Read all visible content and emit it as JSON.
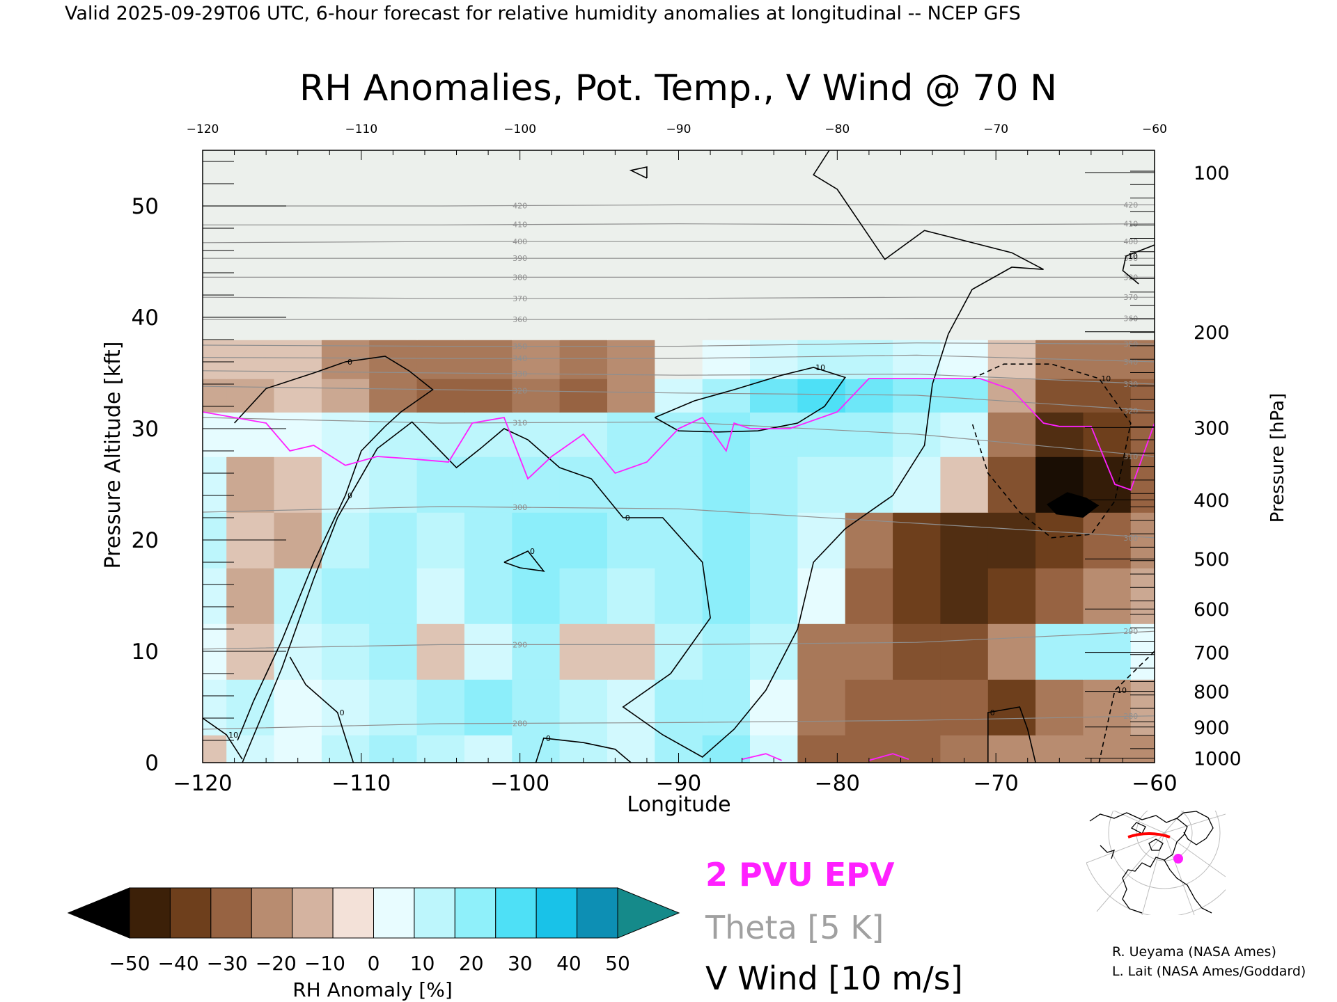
{
  "header": {
    "valid_line": "Valid 2025-09-29T06 UTC, 6-hour forecast for relative humidity anomalies at longitudinal -- NCEP GFS"
  },
  "chart_data": {
    "type": "heatmap",
    "title": "RH Anomalies, Pot. Temp., V Wind @ 70 N",
    "xlabel": "Longitude",
    "ylabel_left": "Pressure Altitude [kft]",
    "ylabel_right": "Pressure [hPa]",
    "xlim": [
      -120,
      -60
    ],
    "ylim": [
      0,
      55
    ],
    "x_ticks": [
      -120,
      -110,
      -100,
      -90,
      -80,
      -70,
      -60
    ],
    "x_tick_labels": [
      "−120",
      "−110",
      "−100",
      "−90",
      "−80",
      "−70",
      "−60"
    ],
    "y_ticks": [
      0,
      10,
      20,
      30,
      40,
      50
    ],
    "pressure_ticks": [
      {
        "hPa": "100",
        "kft": 53.0
      },
      {
        "hPa": "200",
        "kft": 38.7
      },
      {
        "hPa": "300",
        "kft": 30.1
      },
      {
        "hPa": "400",
        "kft": 23.6
      },
      {
        "hPa": "500",
        "kft": 18.3
      },
      {
        "hPa": "600",
        "kft": 13.8
      },
      {
        "hPa": "700",
        "kft": 9.9
      },
      {
        "hPa": "800",
        "kft": 6.4
      },
      {
        "hPa": "900",
        "kft": 3.2
      },
      {
        "hPa": "1000",
        "kft": 0.4
      }
    ],
    "rh_anomaly_grid": {
      "x": [
        -120,
        -117,
        -114,
        -111,
        -108,
        -105,
        -102,
        -99,
        -96,
        -93,
        -90,
        -87,
        -84,
        -81,
        -78,
        -75,
        -72,
        -69,
        -66,
        -63,
        -60
      ],
      "y": [
        0,
        5,
        10,
        15,
        20,
        25,
        30,
        33,
        36,
        40,
        45,
        50,
        55
      ],
      "values": [
        [
          -5,
          10,
          5,
          15,
          20,
          15,
          10,
          20,
          15,
          10,
          20,
          25,
          10,
          -25,
          -25,
          -25,
          -20,
          -15,
          -15,
          -15,
          -15
        ],
        [
          10,
          15,
          5,
          10,
          15,
          20,
          25,
          20,
          15,
          10,
          20,
          20,
          5,
          -20,
          -25,
          -25,
          -25,
          -35,
          -20,
          -15,
          -10
        ],
        [
          5,
          -5,
          10,
          15,
          20,
          -5,
          10,
          20,
          -5,
          -5,
          15,
          20,
          15,
          -20,
          -20,
          -30,
          -30,
          -15,
          20,
          20,
          5
        ],
        [
          10,
          -10,
          15,
          20,
          20,
          10,
          20,
          25,
          20,
          15,
          20,
          25,
          20,
          5,
          -25,
          -35,
          -40,
          -35,
          -25,
          -15,
          -10
        ],
        [
          15,
          -5,
          -10,
          15,
          20,
          15,
          20,
          25,
          25,
          20,
          20,
          25,
          20,
          10,
          -20,
          -35,
          -40,
          -40,
          -35,
          -25,
          -15
        ],
        [
          10,
          -10,
          -5,
          10,
          15,
          20,
          20,
          20,
          20,
          20,
          20,
          25,
          20,
          15,
          15,
          10,
          -5,
          -30,
          -50,
          -45,
          -25
        ],
        [
          5,
          5,
          5,
          10,
          15,
          15,
          15,
          15,
          15,
          20,
          20,
          25,
          20,
          20,
          20,
          15,
          10,
          -20,
          -40,
          -35,
          -25
        ],
        [
          -10,
          -10,
          -5,
          -10,
          -20,
          -25,
          -25,
          -20,
          -25,
          -15,
          10,
          20,
          30,
          35,
          30,
          25,
          25,
          -10,
          -30,
          -30,
          -25
        ],
        [
          -5,
          -5,
          -5,
          -15,
          -20,
          -20,
          -20,
          -15,
          -20,
          -15,
          0,
          5,
          10,
          15,
          15,
          10,
          5,
          -5,
          -20,
          -20,
          -20
        ],
        [
          0,
          0,
          0,
          0,
          0,
          0,
          0,
          0,
          0,
          0,
          0,
          0,
          0,
          0,
          0,
          0,
          0,
          0,
          0,
          0,
          0
        ],
        [
          0,
          0,
          0,
          0,
          0,
          0,
          0,
          0,
          0,
          0,
          0,
          0,
          0,
          0,
          0,
          0,
          0,
          0,
          0,
          0,
          0
        ],
        [
          0,
          0,
          0,
          0,
          0,
          0,
          0,
          0,
          0,
          0,
          0,
          0,
          0,
          0,
          0,
          0,
          0,
          0,
          0,
          0,
          0
        ],
        [
          0,
          0,
          0,
          0,
          0,
          0,
          0,
          0,
          0,
          0,
          0,
          0,
          0,
          0,
          0,
          0,
          0,
          0,
          0,
          0,
          0
        ]
      ]
    },
    "theta_contours": [
      {
        "label": "280",
        "y": [
          3.0,
          3.5,
          3.6,
          3.8,
          4.2
        ]
      },
      {
        "label": "290",
        "y": [
          10.2,
          10.6,
          10.6,
          10.8,
          11.8
        ]
      },
      {
        "label": "300",
        "y": [
          22.5,
          23.0,
          22.8,
          21.5,
          20.2
        ]
      },
      {
        "label": "310",
        "y": [
          31.0,
          30.5,
          30.6,
          29.5,
          27.5
        ]
      },
      {
        "label": "320",
        "y": [
          33.8,
          33.5,
          33.2,
          33.0,
          31.6
        ]
      },
      {
        "label": "330",
        "y": [
          35.2,
          35.0,
          34.8,
          34.9,
          34.0
        ]
      },
      {
        "label": "340",
        "y": [
          36.4,
          36.3,
          36.3,
          36.6,
          36.0
        ]
      },
      {
        "label": "350",
        "y": [
          37.5,
          37.4,
          37.4,
          37.7,
          37.6
        ]
      },
      {
        "label": "360",
        "y": [
          39.8,
          39.8,
          39.8,
          39.9,
          39.9
        ]
      },
      {
        "label": "370",
        "y": [
          41.8,
          41.7,
          41.7,
          41.8,
          41.8
        ]
      },
      {
        "label": "380",
        "y": [
          43.6,
          43.6,
          43.6,
          43.6,
          43.6
        ]
      },
      {
        "label": "390",
        "y": [
          45.3,
          45.3,
          45.3,
          45.3,
          45.3
        ]
      },
      {
        "label": "400",
        "y": [
          46.7,
          46.8,
          46.8,
          46.8,
          46.8
        ]
      },
      {
        "label": "410",
        "y": [
          48.3,
          48.3,
          48.4,
          48.3,
          48.4
        ]
      },
      {
        "label": "420",
        "y": [
          50.0,
          50.0,
          50.1,
          50.1,
          50.1
        ]
      }
    ],
    "theta_contour_x": [
      -120,
      -105,
      -90,
      -75,
      -60
    ],
    "pv_2pvu_line": {
      "x": [
        -120,
        -116,
        -114.5,
        -113,
        -111,
        -109,
        -107,
        -104.5,
        -103,
        -101,
        -99.5,
        -98,
        -96,
        -94,
        -92,
        -90,
        -88.5,
        -87.5,
        -87,
        -86.5,
        -85.5,
        -83,
        -80,
        -78,
        -76,
        -74,
        -71,
        -69,
        -67,
        -66,
        -64,
        -62.5,
        -61.5,
        -60
      ],
      "y": [
        31.5,
        30.5,
        28,
        28.5,
        26.7,
        27.5,
        27.3,
        27,
        30.5,
        31,
        25.5,
        27.5,
        29.5,
        26,
        27,
        30,
        31,
        29,
        28,
        30.5,
        30,
        30,
        31.5,
        34.5,
        34.5,
        34.5,
        34.5,
        33.5,
        30.5,
        30.2,
        30.2,
        25,
        24.5,
        30.5
      ]
    },
    "pv_2pvu_surface": [
      {
        "x": [
          -86,
          -84.5,
          -83.5
        ],
        "y": [
          0.3,
          0.8,
          0.2
        ]
      },
      {
        "x": [
          -78,
          -76.5,
          -75.5
        ],
        "y": [
          0.2,
          0.8,
          0.3
        ]
      }
    ],
    "v_wind_contours": [
      {
        "label": "0",
        "style": "solid",
        "points": [
          [
            -117.5,
            0
          ],
          [
            -115,
            8.5
          ],
          [
            -113,
            16.5
          ],
          [
            -111.5,
            22
          ],
          [
            -109,
            28.2
          ],
          [
            -106.8,
            30.6
          ],
          [
            -104,
            26.5
          ],
          [
            -102.5,
            28.2
          ],
          [
            -101,
            30
          ],
          [
            -99.5,
            29
          ],
          [
            -97.5,
            26.5
          ],
          [
            -95.5,
            25.5
          ],
          [
            -93.5,
            22
          ],
          [
            -91,
            22
          ],
          [
            -88.5,
            18
          ],
          [
            -88,
            13
          ],
          [
            -90.5,
            8
          ],
          [
            -93.5,
            5
          ],
          [
            -91,
            2.5
          ],
          [
            -88.5,
            0.5
          ],
          [
            -86.5,
            3
          ],
          [
            -84.5,
            6.5
          ],
          [
            -82.5,
            12
          ],
          [
            -81.5,
            18
          ],
          [
            -79.5,
            21
          ],
          [
            -76.5,
            24
          ],
          [
            -74.5,
            28.5
          ],
          [
            -74,
            34
          ],
          [
            -73,
            38.5
          ],
          [
            -71.5,
            42.5
          ],
          [
            -69,
            44.5
          ],
          [
            -67,
            44.3
          ],
          [
            -69,
            45.8
          ],
          [
            -74.5,
            47.8
          ],
          [
            -77,
            45.2
          ],
          [
            -80,
            51.5
          ],
          [
            -81.5,
            52.8
          ],
          [
            -80.5,
            55
          ]
        ]
      },
      {
        "label": "0",
        "style": "solid",
        "points": [
          [
            -118,
            30.5
          ],
          [
            -116,
            33.6
          ],
          [
            -113,
            35
          ],
          [
            -111,
            36
          ],
          [
            -108.5,
            36.5
          ],
          [
            -107,
            35.2
          ],
          [
            -105.5,
            33.5
          ],
          [
            -107.5,
            31.5
          ],
          [
            -108.5,
            30.2
          ]
        ]
      },
      {
        "label": "0",
        "style": "solid",
        "points": [
          [
            -108.5,
            30.2
          ],
          [
            -110,
            28
          ],
          [
            -111,
            24
          ],
          [
            -113,
            18
          ],
          [
            -115,
            11
          ],
          [
            -116.8,
            5.5
          ],
          [
            -117.8,
            2
          ]
        ]
      },
      {
        "label": "0",
        "style": "solid",
        "points": [
          [
            -110.5,
            0
          ],
          [
            -111.5,
            4.5
          ],
          [
            -113.5,
            7
          ],
          [
            -114.5,
            9.5
          ]
        ]
      },
      {
        "label": "10",
        "style": "solid",
        "points": [
          [
            -91.5,
            31
          ],
          [
            -89,
            32.5
          ],
          [
            -86.5,
            33.5
          ],
          [
            -83.5,
            34.8
          ],
          [
            -81.5,
            35.5
          ],
          [
            -79.5,
            34.6
          ],
          [
            -80.8,
            32
          ],
          [
            -82.5,
            30.5
          ],
          [
            -85,
            29.8
          ],
          [
            -87.5,
            29.7
          ],
          [
            -90,
            29.8
          ],
          [
            -91.5,
            31
          ]
        ]
      },
      {
        "label": "0",
        "style": "solid",
        "points": [
          [
            -101,
            18
          ],
          [
            -99.5,
            19
          ],
          [
            -98.5,
            17.2
          ],
          [
            -100,
            17.5
          ],
          [
            -101,
            18
          ]
        ]
      },
      {
        "label": "0",
        "style": "solid",
        "points": [
          [
            -99,
            0
          ],
          [
            -98.5,
            2.2
          ],
          [
            -96,
            1.8
          ],
          [
            -94,
            1.2
          ],
          [
            -93,
            0
          ]
        ]
      },
      {
        "label": "0",
        "style": "solid",
        "points": [
          [
            -70.5,
            0
          ],
          [
            -70.5,
            4.5
          ],
          [
            -68.5,
            5
          ],
          [
            -68,
            3
          ],
          [
            -67.5,
            0
          ]
        ]
      },
      {
        "label": "",
        "style": "solid",
        "points": [
          [
            -92,
            52.5
          ],
          [
            -93,
            53.2
          ],
          [
            -92,
            53.5
          ],
          [
            -92,
            52.5
          ]
        ]
      },
      {
        "label": "10",
        "style": "dashed",
        "points": [
          [
            -71.5,
            34.5
          ],
          [
            -69.5,
            35.8
          ],
          [
            -66.5,
            35.8
          ],
          [
            -63.5,
            34.5
          ],
          [
            -61.5,
            30.5
          ],
          [
            -62.5,
            23.5
          ],
          [
            -64,
            20.5
          ],
          [
            -66.5,
            20.2
          ],
          [
            -68.5,
            22.5
          ],
          [
            -70.5,
            26
          ],
          [
            -71.5,
            30.5
          ]
        ]
      },
      {
        "label": "10",
        "style": "dashed",
        "points": [
          [
            -60,
            10
          ],
          [
            -62.5,
            6.5
          ],
          [
            -63.5,
            0
          ]
        ]
      },
      {
        "label": "10",
        "style": "solid",
        "points": [
          [
            -120,
            4
          ],
          [
            -118.5,
            2.5
          ],
          [
            -117.5,
            0.3
          ]
        ]
      },
      {
        "label": "10",
        "style": "solid",
        "points": [
          [
            -60,
            46.5
          ],
          [
            -61.8,
            45.5
          ],
          [
            -62,
            44.2
          ],
          [
            -61,
            43
          ]
        ]
      }
    ],
    "colorbar": {
      "label": "RH Anomaly [%]",
      "ticks": [
        "−50",
        "−40",
        "−30",
        "−20",
        "−10",
        "0",
        "10",
        "20",
        "30",
        "40",
        "50"
      ],
      "colors_low_to_high": [
        "#000000",
        "#3c2008",
        "#6e3f1c",
        "#976342",
        "#b88c70",
        "#d4b3a0",
        "#f3e1d8",
        "#e8fcff",
        "#bdf6fc",
        "#8ff0fa",
        "#4ee0f6",
        "#19c2e8",
        "#0d8fb4",
        "#158a8a"
      ]
    },
    "legend": {
      "pv": "2 PVU EPV",
      "theta": "Theta [5 K]",
      "vwind": "V Wind [10 m/s]",
      "pv_color": "#ff20ff",
      "theta_color": "#a0a0a0",
      "vwind_color": "#000000"
    }
  },
  "credits": {
    "line1": "R. Ueyama (NASA Ames)",
    "line2": "L. Lait (NASA Ames/Goddard)"
  }
}
